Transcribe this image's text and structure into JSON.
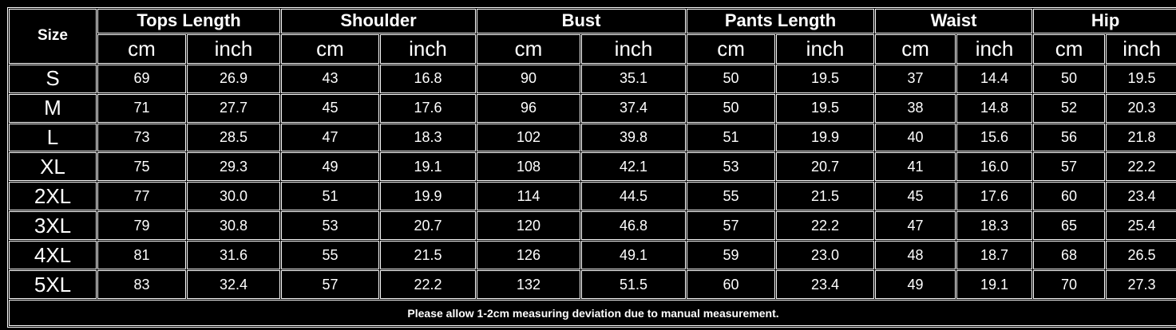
{
  "table": {
    "size_header": "Size",
    "groups": [
      "Tops Length",
      "Shoulder",
      "Bust",
      "Pants Length",
      "Waist",
      "Hip"
    ],
    "units": [
      "cm",
      "inch"
    ],
    "rows": [
      [
        "S",
        "69",
        "26.9",
        "43",
        "16.8",
        "90",
        "35.1",
        "50",
        "19.5",
        "37",
        "14.4",
        "50",
        "19.5"
      ],
      [
        "M",
        "71",
        "27.7",
        "45",
        "17.6",
        "96",
        "37.4",
        "50",
        "19.5",
        "38",
        "14.8",
        "52",
        "20.3"
      ],
      [
        "L",
        "73",
        "28.5",
        "47",
        "18.3",
        "102",
        "39.8",
        "51",
        "19.9",
        "40",
        "15.6",
        "56",
        "21.8"
      ],
      [
        "XL",
        "75",
        "29.3",
        "49",
        "19.1",
        "108",
        "42.1",
        "53",
        "20.7",
        "41",
        "16.0",
        "57",
        "22.2"
      ],
      [
        "2XL",
        "77",
        "30.0",
        "51",
        "19.9",
        "114",
        "44.5",
        "55",
        "21.5",
        "45",
        "17.6",
        "60",
        "23.4"
      ],
      [
        "3XL",
        "79",
        "30.8",
        "53",
        "20.7",
        "120",
        "46.8",
        "57",
        "22.2",
        "47",
        "18.3",
        "65",
        "25.4"
      ],
      [
        "4XL",
        "81",
        "31.6",
        "55",
        "21.5",
        "126",
        "49.1",
        "59",
        "23.0",
        "48",
        "18.7",
        "68",
        "26.5"
      ],
      [
        "5XL",
        "83",
        "32.4",
        "57",
        "22.2",
        "132",
        "51.5",
        "60",
        "23.4",
        "49",
        "19.1",
        "70",
        "27.3"
      ]
    ],
    "note": "Please allow 1-2cm measuring deviation due to manual measurement."
  }
}
